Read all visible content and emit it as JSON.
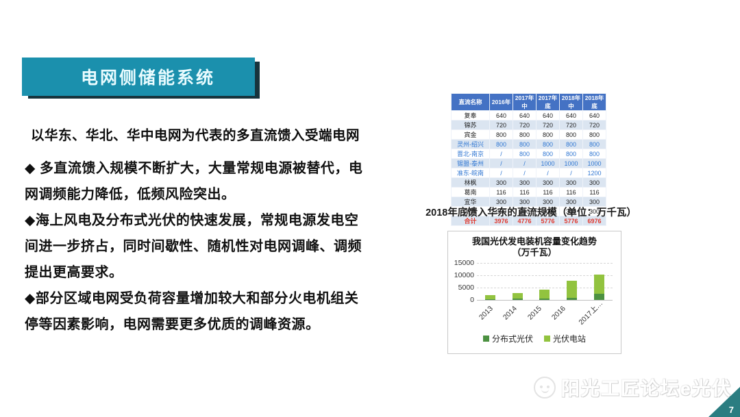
{
  "slide": {
    "header_title": "电网侧储能系统",
    "section_title": "以华东、华北、华中电网为代表的多直流馈入受端电网",
    "bullets": [
      "◆ 多直流馈入规模不断扩大，大量常规电源被替代，电网调频能力降低，低频风险突出。",
      "◆海上风电及分布式光伏的快速发展，常规电源发电空间进一步挤占，同时间歇性、随机性对电网调峰、调频提出更高要求。",
      "◆部分区域电网受负荷容量增加较大和部分火电机组关停等因素影响，电网需要更多优质的调峰资源。"
    ],
    "watermark": "阳光工匠论坛e光伏",
    "page_number": "7",
    "accent_color": "#1b90ad",
    "corner_color": "#2b7d81"
  },
  "dc_table": {
    "caption": "2018年底馈入华东的直流规模（单位：万千瓦）",
    "headers": [
      "直流名称",
      "2016年",
      "2017年中",
      "2017年底",
      "2018年中",
      "2018年底"
    ],
    "header_bg": "#4472c4",
    "highlight_text_color": "#2f76d2",
    "total_text_color": "#e03a30",
    "rows": [
      {
        "name": "复奉",
        "values": [
          "640",
          "640",
          "640",
          "640",
          "640"
        ],
        "style": "black"
      },
      {
        "name": "锦苏",
        "values": [
          "720",
          "720",
          "720",
          "720",
          "720"
        ],
        "style": "black"
      },
      {
        "name": "宾金",
        "values": [
          "800",
          "800",
          "800",
          "800",
          "800"
        ],
        "style": "black"
      },
      {
        "name": "灵州-绍兴",
        "values": [
          "800",
          "800",
          "800",
          "800",
          "800"
        ],
        "style": "blue"
      },
      {
        "name": "晋北-南京",
        "values": [
          "/",
          "800",
          "800",
          "800",
          "800"
        ],
        "style": "blue"
      },
      {
        "name": "锡盟-泰州",
        "values": [
          "/",
          "/",
          "1000",
          "1000",
          "1000"
        ],
        "style": "blue"
      },
      {
        "name": "准东-皖南",
        "values": [
          "/",
          "/",
          "/",
          "/",
          "1200"
        ],
        "style": "blue"
      },
      {
        "name": "林枫",
        "values": [
          "300",
          "300",
          "300",
          "300",
          "300"
        ],
        "style": "black"
      },
      {
        "name": "葛南",
        "values": [
          "116",
          "116",
          "116",
          "116",
          "116"
        ],
        "style": "black"
      },
      {
        "name": "宜华",
        "values": [
          "300",
          "300",
          "300",
          "300",
          "300"
        ],
        "style": "black"
      },
      {
        "name": "龙政",
        "values": [
          "300",
          "300",
          "300",
          "300",
          "300"
        ],
        "style": "black"
      },
      {
        "name": "合计",
        "values": [
          "3976",
          "4776",
          "5776",
          "5776",
          "6976"
        ],
        "style": "red"
      }
    ]
  },
  "chart_data": {
    "type": "bar",
    "stacked": true,
    "title": "我国光伏发电装机容量变化趋势",
    "subtitle": "（万千瓦）",
    "categories": [
      "2013",
      "2014",
      "2015",
      "2016",
      "2017上…"
    ],
    "series": [
      {
        "name": "分布式光伏",
        "color": "#4c9141",
        "values": [
          300,
          450,
          600,
          800,
          2500
        ]
      },
      {
        "name": "光伏电站",
        "color": "#92c33f",
        "values": [
          1600,
          2350,
          3700,
          6900,
          7700
        ]
      }
    ],
    "ylim": [
      0,
      15000
    ],
    "yticks": [
      0,
      5000,
      10000,
      15000
    ],
    "grid": "dashed-horizontal",
    "legend_position": "bottom"
  }
}
